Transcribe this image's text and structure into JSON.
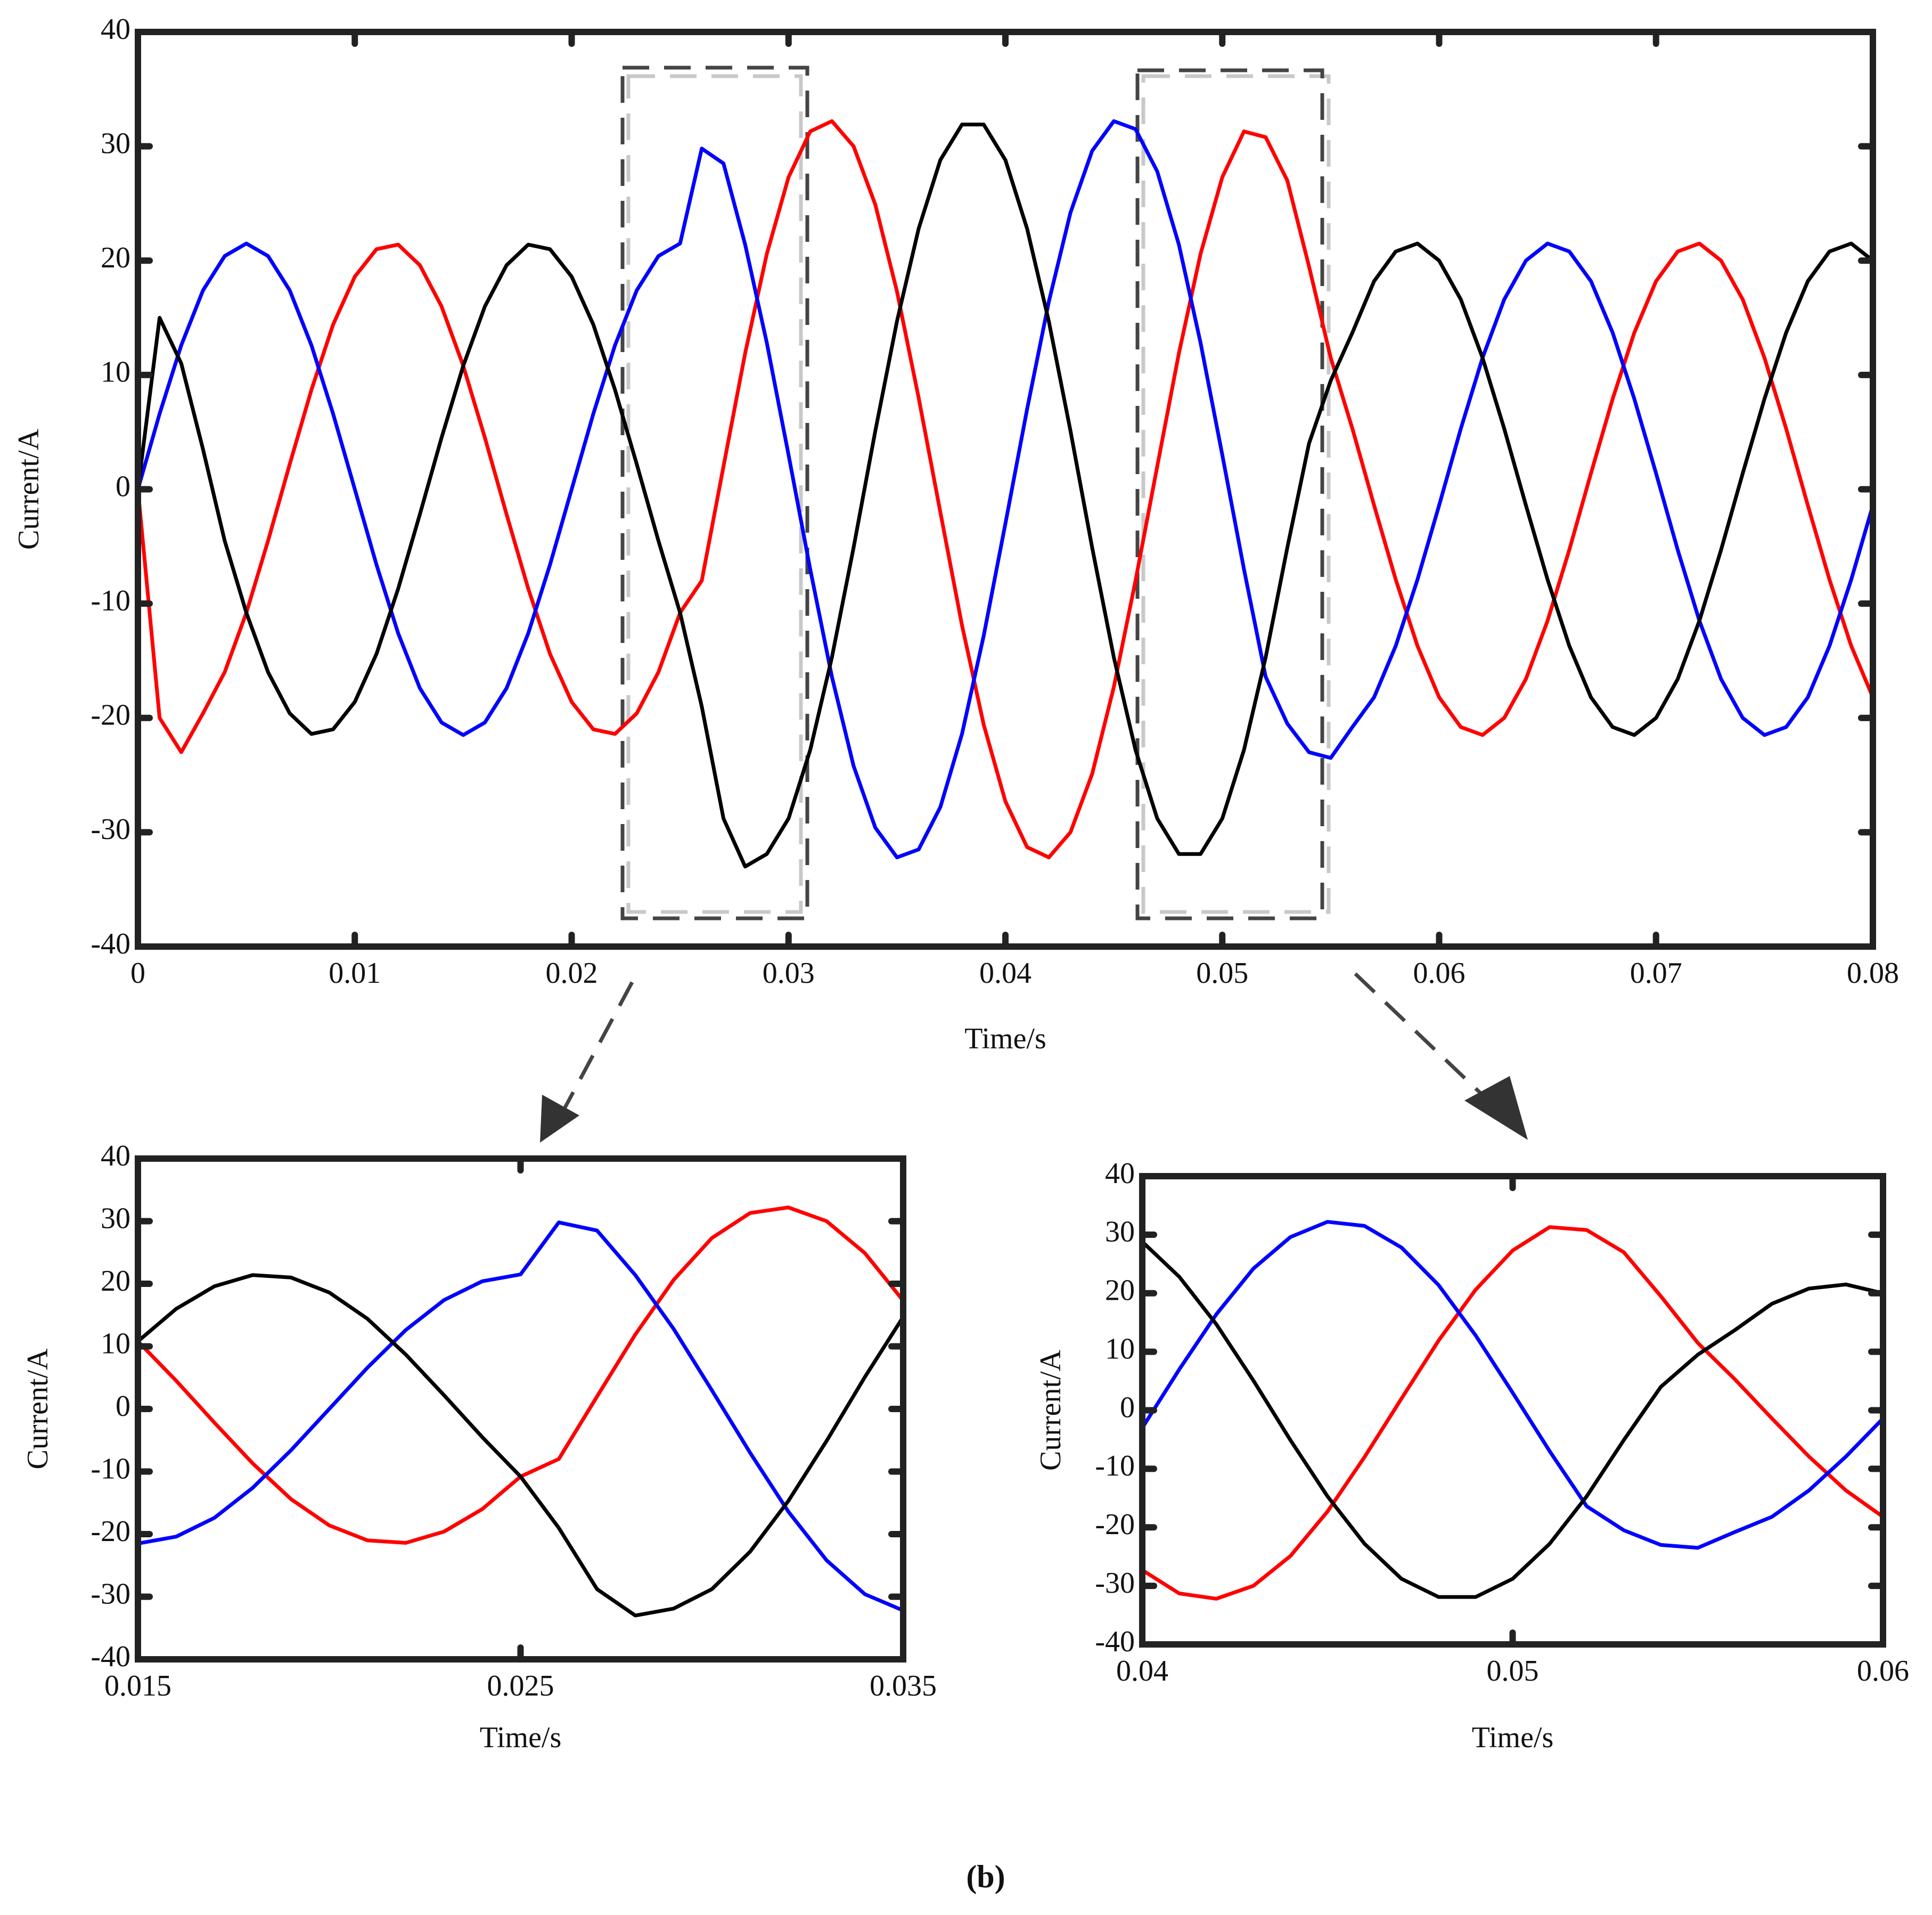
{
  "chart_data": [
    {
      "type": "line",
      "xlabel": "Time/s",
      "ylabel": "Current/A",
      "x": [
        0,
        0.001,
        0.002,
        0.003,
        0.004,
        0.005,
        0.006,
        0.007,
        0.008,
        0.009,
        0.01,
        0.011,
        0.012,
        0.013,
        0.014,
        0.015,
        0.016,
        0.017,
        0.018,
        0.019,
        0.02,
        0.021,
        0.022,
        0.023,
        0.024,
        0.025,
        0.026,
        0.027,
        0.028,
        0.029,
        0.03,
        0.031,
        0.032,
        0.033,
        0.034,
        0.035,
        0.036,
        0.037,
        0.038,
        0.039,
        0.04,
        0.041,
        0.042,
        0.043,
        0.044,
        0.045,
        0.046,
        0.047,
        0.048,
        0.049,
        0.05,
        0.051,
        0.052,
        0.053,
        0.054,
        0.055,
        0.056,
        0.057,
        0.058,
        0.059,
        0.06,
        0.061,
        0.062,
        0.063,
        0.064,
        0.065,
        0.066,
        0.067,
        0.068,
        0.069,
        0.07,
        0.071,
        0.072,
        0.073,
        0.074,
        0.075,
        0.076,
        0.077,
        0.078,
        0.079,
        0.08
      ],
      "series": [
        {
          "color": "#ff0000",
          "values": [
            0,
            -20,
            -23.0,
            -19.6,
            -16.0,
            -10.8,
            -4.5,
            2.2,
            8.7,
            14.4,
            18.6,
            21.0,
            21.4,
            19.6,
            16.0,
            10.8,
            4.5,
            -2.2,
            -8.7,
            -14.4,
            -18.6,
            -21.0,
            -21.4,
            -19.6,
            -16.0,
            -10.8,
            -8.0,
            2.0,
            11.9,
            20.6,
            27.3,
            31.3,
            32.2,
            30.0,
            24.9,
            17.3,
            8.0,
            -2.0,
            -11.9,
            -20.6,
            -27.3,
            -31.3,
            -32.2,
            -30.0,
            -24.9,
            -17.3,
            -8.0,
            2.0,
            11.9,
            20.6,
            27.3,
            31.3,
            30.8,
            27.0,
            19.5,
            11.5,
            5.3,
            -1.4,
            -7.9,
            -13.7,
            -18.2,
            -20.8,
            -21.5,
            -20.0,
            -16.6,
            -11.5,
            -5.3,
            1.4,
            7.9,
            13.7,
            18.2,
            20.8,
            21.5,
            20.0,
            16.6,
            11.5,
            5.3,
            -1.4,
            -7.9,
            -13.7,
            -18.2
          ]
        },
        {
          "color": "#0000ff",
          "values": [
            0,
            6.6,
            12.6,
            17.4,
            20.4,
            21.5,
            20.4,
            17.4,
            12.6,
            6.6,
            0,
            -6.6,
            -12.6,
            -17.4,
            -20.4,
            -21.5,
            -20.4,
            -17.4,
            -12.6,
            -6.6,
            0,
            6.6,
            12.6,
            17.4,
            20.4,
            21.5,
            29.8,
            28.5,
            21.4,
            12.8,
            3.0,
            -7.0,
            -16.4,
            -24.2,
            -29.6,
            -32.2,
            -31.5,
            -27.8,
            -21.4,
            -12.8,
            -3.0,
            7.0,
            16.4,
            24.2,
            29.6,
            32.2,
            31.5,
            27.8,
            21.4,
            12.8,
            3.0,
            -7.0,
            -16.4,
            -20.5,
            -23.0,
            -23.5,
            -20.8,
            -18.2,
            -13.7,
            -7.9,
            -1.4,
            5.3,
            11.5,
            16.6,
            20.0,
            21.5,
            20.8,
            18.2,
            13.7,
            7.9,
            1.4,
            -5.3,
            -11.5,
            -16.6,
            -20.0,
            -21.5,
            -20.8,
            -18.2,
            -13.7,
            -7.9,
            -1.4
          ]
        },
        {
          "color": "#000000",
          "values": [
            0,
            15,
            11,
            3.5,
            -4.5,
            -10.8,
            -16.0,
            -19.6,
            -21.4,
            -21.0,
            -18.6,
            -14.4,
            -8.7,
            -2.2,
            4.5,
            10.8,
            16.0,
            19.6,
            21.4,
            21.0,
            18.6,
            14.4,
            8.7,
            2.2,
            -4.5,
            -10.8,
            -19,
            -28.8,
            -33.0,
            -31.9,
            -28.8,
            -22.8,
            -14.7,
            -5.1,
            5.1,
            14.7,
            22.8,
            28.8,
            31.9,
            31.9,
            28.8,
            22.8,
            14.7,
            5.1,
            -5.1,
            -14.7,
            -22.8,
            -28.8,
            -31.9,
            -31.9,
            -28.8,
            -22.8,
            -14.7,
            -5.1,
            4.0,
            9.5,
            13.7,
            18.2,
            20.8,
            21.5,
            20.0,
            16.6,
            11.5,
            5.3,
            -1.4,
            -7.9,
            -13.7,
            -18.2,
            -20.8,
            -21.5,
            -20.0,
            -16.6,
            -11.5,
            -5.3,
            1.4,
            7.9,
            13.7,
            18.2,
            20.8,
            21.5,
            20.0
          ]
        }
      ],
      "xlim": [
        0,
        0.08
      ],
      "ylim": [
        -40,
        40
      ],
      "xticks": [
        0,
        0.01,
        0.02,
        0.03,
        0.04,
        0.05,
        0.06,
        0.07,
        0.08
      ],
      "yticks": [
        -40,
        -30,
        -20,
        -10,
        0,
        10,
        20,
        30,
        40
      ]
    },
    {
      "type": "line",
      "xlabel": "Time/s",
      "ylabel": "Current/A",
      "x": [
        0.015,
        0.016,
        0.017,
        0.018,
        0.019,
        0.02,
        0.021,
        0.022,
        0.023,
        0.024,
        0.025,
        0.026,
        0.027,
        0.028,
        0.029,
        0.03,
        0.031,
        0.032,
        0.033,
        0.034,
        0.035
      ],
      "series": [
        {
          "color": "#ff0000",
          "values": [
            10.8,
            4.5,
            -2.2,
            -8.7,
            -14.4,
            -18.6,
            -21.0,
            -21.4,
            -19.6,
            -16.0,
            -10.8,
            -8.0,
            2.0,
            11.9,
            20.6,
            27.3,
            31.3,
            32.2,
            30.0,
            24.9,
            17.3
          ]
        },
        {
          "color": "#0000ff",
          "values": [
            -21.5,
            -20.4,
            -17.4,
            -12.6,
            -6.6,
            0,
            6.6,
            12.6,
            17.4,
            20.4,
            21.5,
            29.8,
            28.5,
            21.4,
            12.8,
            3.0,
            -7.0,
            -16.4,
            -24.2,
            -29.6,
            -32.2
          ]
        },
        {
          "color": "#000000",
          "values": [
            10.8,
            16.0,
            19.6,
            21.4,
            21.0,
            18.6,
            14.4,
            8.7,
            2.2,
            -4.5,
            -10.8,
            -19,
            -28.8,
            -33.0,
            -31.9,
            -28.8,
            -22.8,
            -14.7,
            -5.1,
            5.1,
            14.7
          ]
        }
      ],
      "xlim": [
        0.015,
        0.035
      ],
      "ylim": [
        -40,
        40
      ],
      "xticks": [
        0.015,
        0.025,
        0.035
      ],
      "yticks": [
        -40,
        -30,
        -20,
        -10,
        0,
        10,
        20,
        30,
        40
      ]
    },
    {
      "type": "line",
      "xlabel": "Time/s",
      "ylabel": "Current/A",
      "x": [
        0.04,
        0.041,
        0.042,
        0.043,
        0.044,
        0.045,
        0.046,
        0.047,
        0.048,
        0.049,
        0.05,
        0.051,
        0.052,
        0.053,
        0.054,
        0.055,
        0.056,
        0.057,
        0.058,
        0.059,
        0.06
      ],
      "series": [
        {
          "color": "#ff0000",
          "values": [
            -27.3,
            -31.3,
            -32.2,
            -30.0,
            -24.9,
            -17.3,
            -8.0,
            2.0,
            11.9,
            20.6,
            27.3,
            31.3,
            30.8,
            27.0,
            19.5,
            11.5,
            5.3,
            -1.4,
            -7.9,
            -13.7,
            -18.2
          ]
        },
        {
          "color": "#0000ff",
          "values": [
            -3.0,
            7.0,
            16.4,
            24.2,
            29.6,
            32.2,
            31.5,
            27.8,
            21.4,
            12.8,
            3.0,
            -7.0,
            -16.4,
            -20.5,
            -23.0,
            -23.5,
            -20.8,
            -18.2,
            -13.7,
            -7.9,
            -1.4
          ]
        },
        {
          "color": "#000000",
          "values": [
            28.8,
            22.8,
            14.7,
            5.1,
            -5.1,
            -14.7,
            -22.8,
            -28.8,
            -31.9,
            -31.9,
            -28.8,
            -22.8,
            -14.7,
            -5.1,
            4.0,
            9.5,
            13.7,
            18.2,
            20.8,
            21.5,
            20.0
          ]
        }
      ],
      "xlim": [
        0.04,
        0.06
      ],
      "ylim": [
        -40,
        40
      ],
      "xticks": [
        0.04,
        0.05,
        0.06
      ],
      "yticks": [
        -40,
        -30,
        -20,
        -10,
        0,
        10,
        20,
        30,
        40
      ]
    }
  ],
  "caption": "(b)"
}
